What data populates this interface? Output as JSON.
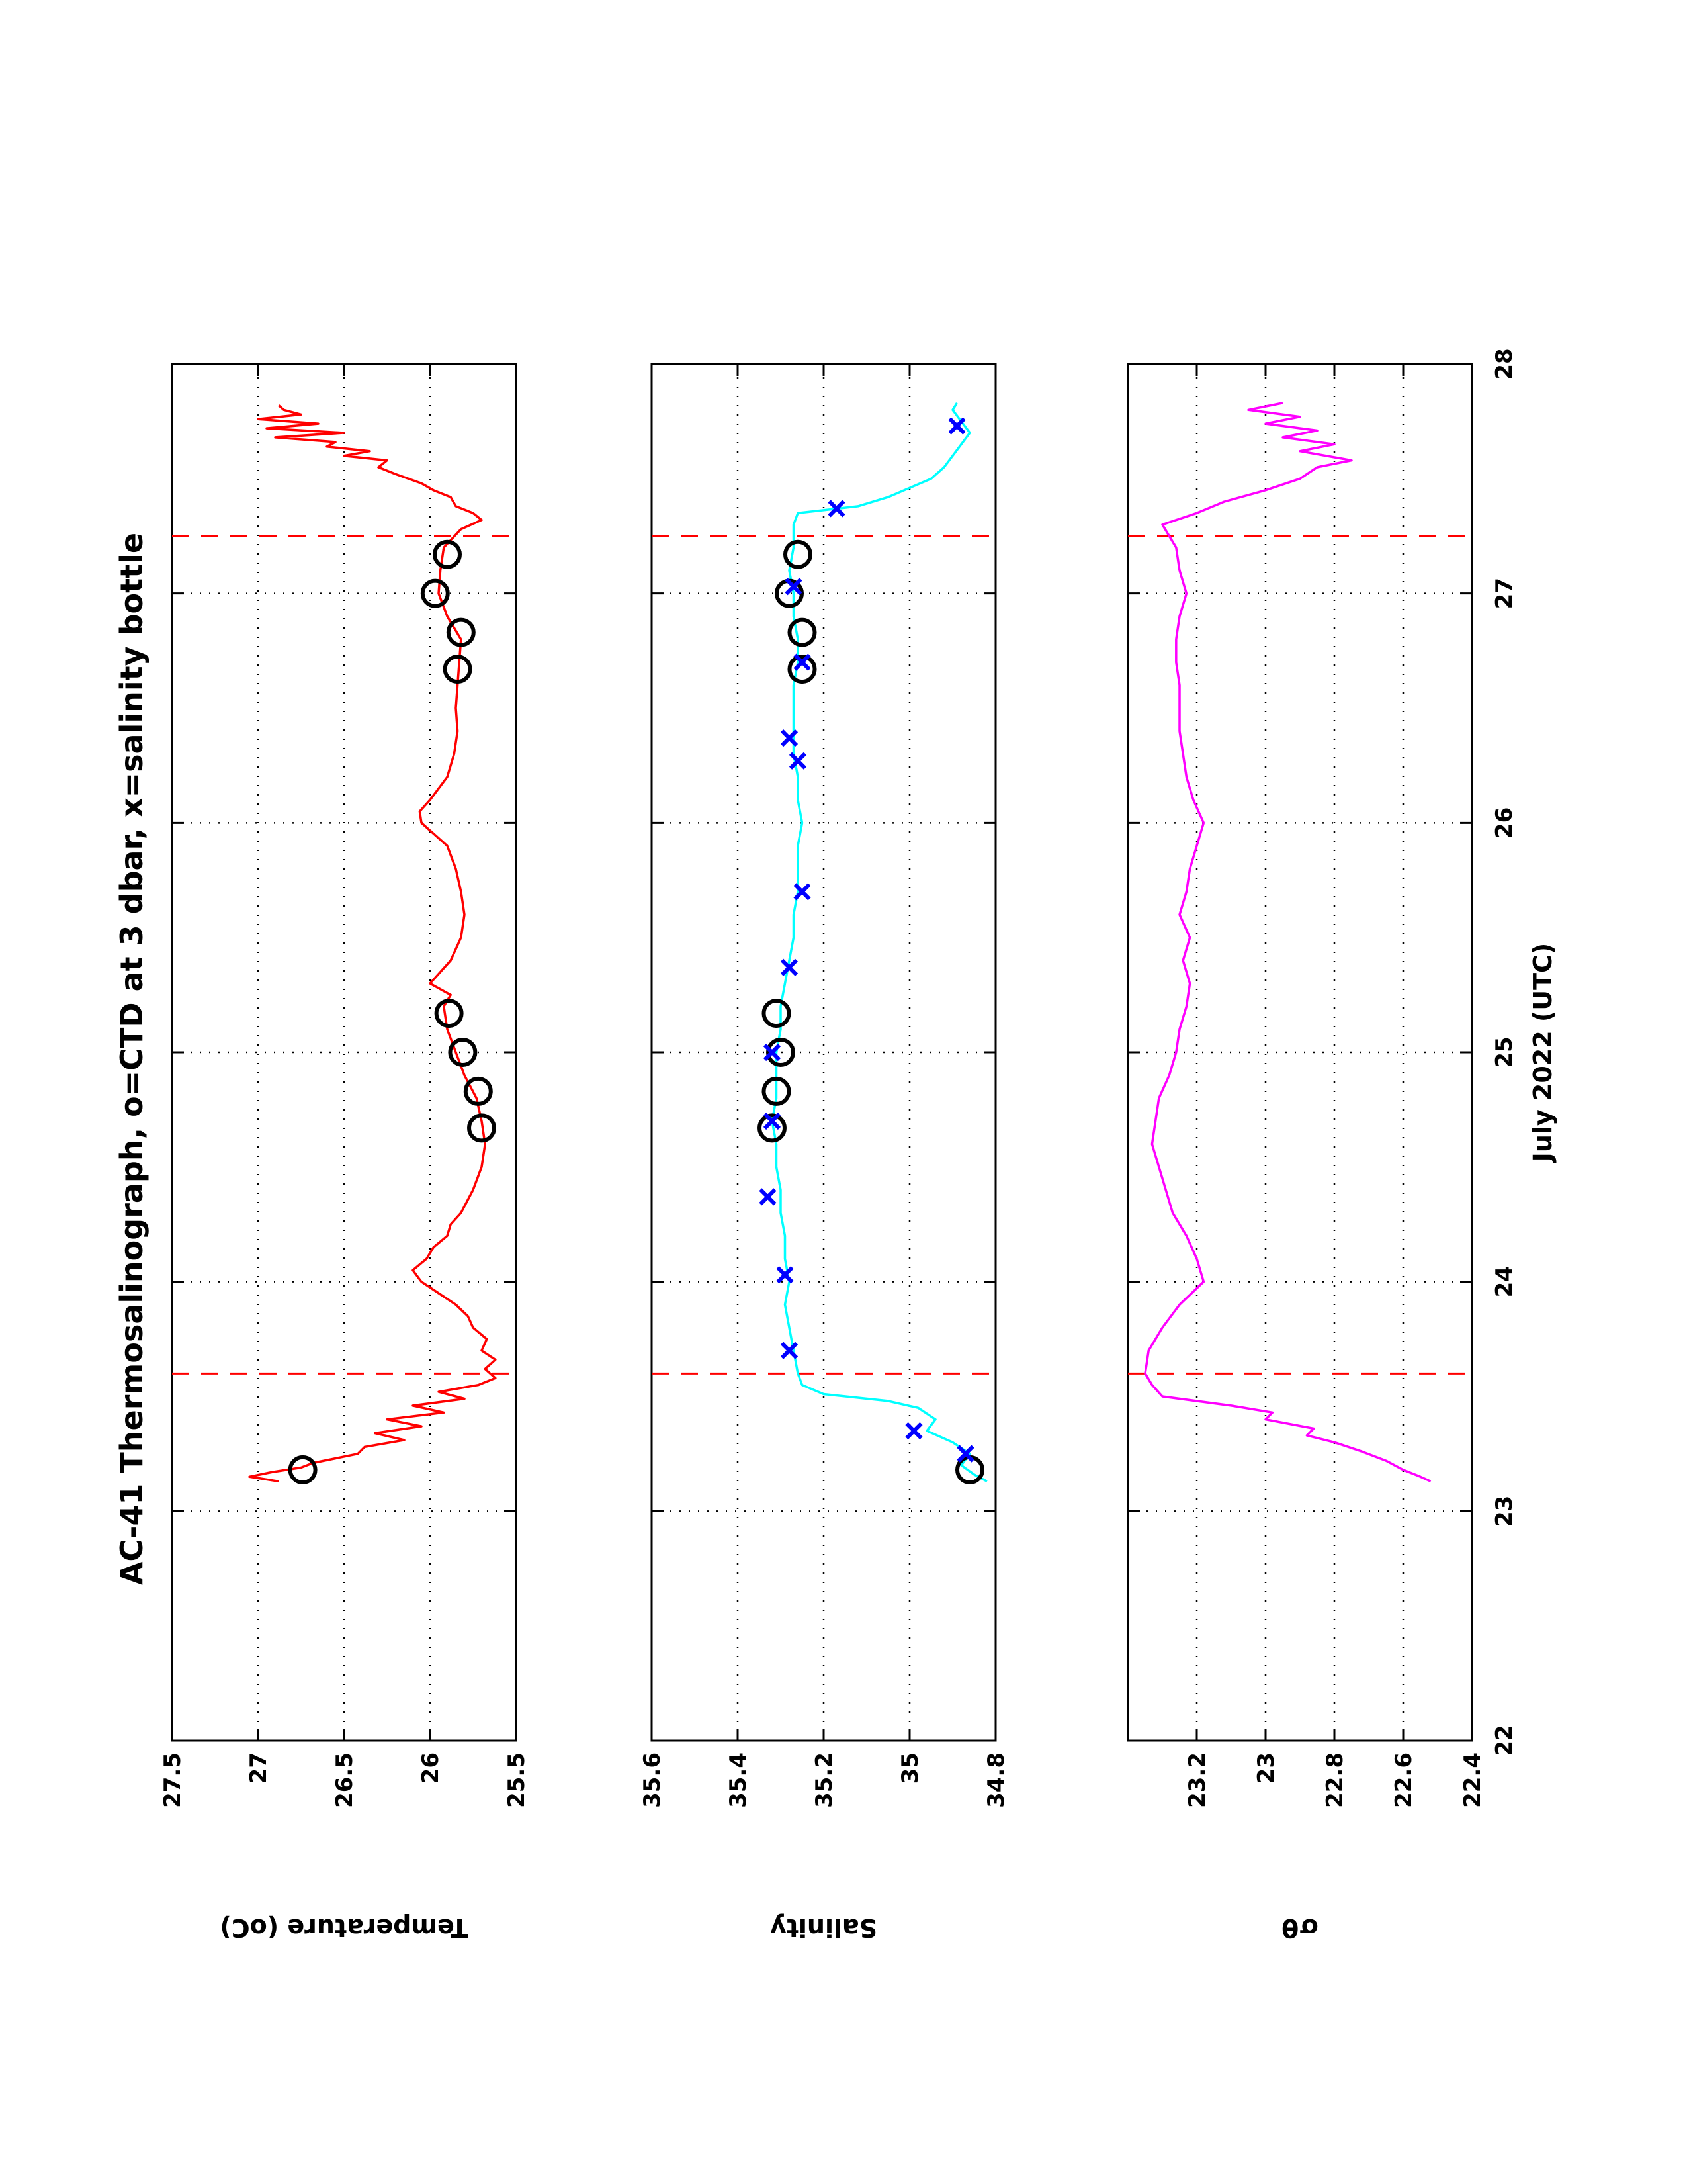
{
  "title": "AC-41 Thermosalinograph, o=CTD at 3 dbar, x=salinity bottle",
  "colors": {
    "temperature": "#ff0000",
    "salinity": "#00ffff",
    "sigma": "#ff00ff",
    "ctd_marker": "#000000",
    "bottle_marker": "#0000ff",
    "vline": "#ff0000"
  },
  "chart_data": [
    {
      "type": "line",
      "panel": "temperature",
      "xlabel": "",
      "ylabel": "Temperature (oC)",
      "xlim": [
        22,
        28
      ],
      "ylim": [
        25.5,
        27.5
      ],
      "x_ticks": [
        "22",
        "23",
        "24",
        "25",
        "26",
        "27",
        "28"
      ],
      "y_ticks": [
        "27.5",
        "27",
        "26.5",
        "26",
        "25.5"
      ],
      "grid": true,
      "vertical_dashed_lines": [
        23.6,
        27.25
      ],
      "series": [
        {
          "x": [
            23.13,
            23.15,
            23.17,
            23.19,
            23.21,
            23.23,
            23.25,
            23.28,
            23.31,
            23.34,
            23.37,
            23.4,
            23.43,
            23.46,
            23.49,
            23.52,
            23.55,
            23.58,
            23.62,
            23.66,
            23.7,
            23.75,
            23.8,
            23.85,
            23.9,
            23.95,
            24.0,
            24.05,
            24.1,
            24.15,
            24.2,
            24.25,
            24.3,
            24.4,
            24.5,
            24.6,
            24.7,
            24.8,
            24.9,
            25.0,
            25.1,
            25.2,
            25.25,
            25.3,
            25.4,
            25.5,
            25.6,
            25.7,
            25.8,
            25.9,
            26.0,
            26.05,
            26.1,
            26.2,
            26.3,
            26.4,
            26.5,
            26.6,
            26.7,
            26.8,
            26.9,
            27.0,
            27.1,
            27.2,
            27.28,
            27.32,
            27.35,
            27.38,
            27.42,
            27.45,
            27.48,
            27.52,
            27.55,
            27.58,
            27.6,
            27.62,
            27.64,
            27.66,
            27.68,
            27.7,
            27.72,
            27.74,
            27.76,
            27.78,
            27.8,
            27.82
          ],
          "values": [
            26.88,
            27.05,
            26.92,
            26.75,
            26.68,
            26.55,
            26.42,
            26.38,
            26.15,
            26.32,
            26.05,
            26.25,
            25.92,
            26.1,
            25.8,
            25.95,
            25.72,
            25.62,
            25.68,
            25.62,
            25.7,
            25.67,
            25.75,
            25.78,
            25.85,
            25.95,
            26.05,
            26.1,
            26.02,
            25.98,
            25.9,
            25.88,
            25.82,
            25.75,
            25.7,
            25.68,
            25.7,
            25.73,
            25.8,
            25.85,
            25.9,
            25.92,
            25.88,
            26.0,
            25.88,
            25.82,
            25.8,
            25.82,
            25.85,
            25.9,
            26.05,
            26.06,
            26.0,
            25.9,
            25.86,
            25.84,
            25.85,
            25.84,
            25.83,
            25.82,
            25.9,
            25.95,
            25.94,
            25.92,
            25.82,
            25.7,
            25.75,
            25.85,
            25.88,
            25.98,
            26.05,
            26.2,
            26.3,
            26.25,
            26.5,
            26.35,
            26.6,
            26.55,
            26.9,
            26.5,
            26.95,
            26.65,
            27.0,
            26.75,
            26.85,
            26.88
          ]
        }
      ],
      "ctd_points": {
        "x": [
          23.18,
          24.67,
          24.83,
          25.0,
          25.17,
          26.67,
          26.83,
          27.0,
          27.17
        ],
        "values": [
          26.74,
          25.7,
          25.72,
          25.81,
          25.89,
          25.84,
          25.82,
          25.97,
          25.9
        ]
      }
    },
    {
      "type": "line",
      "panel": "salinity",
      "xlabel": "",
      "ylabel": "Salinity",
      "xlim": [
        22,
        28
      ],
      "ylim": [
        34.8,
        35.6
      ],
      "x_ticks": [
        "22",
        "23",
        "24",
        "25",
        "26",
        "27",
        "28"
      ],
      "y_ticks": [
        "35.6",
        "35.4",
        "35.2",
        "35",
        "34.8"
      ],
      "grid": true,
      "vertical_dashed_lines": [
        23.6,
        27.25
      ],
      "series": [
        {
          "x": [
            23.13,
            23.16,
            23.2,
            23.25,
            23.3,
            23.35,
            23.4,
            23.45,
            23.48,
            23.51,
            23.55,
            23.6,
            23.7,
            23.8,
            23.9,
            24.0,
            24.1,
            24.2,
            24.3,
            24.4,
            24.5,
            24.6,
            24.7,
            24.8,
            24.9,
            25.0,
            25.1,
            25.2,
            25.3,
            25.4,
            25.5,
            25.6,
            25.7,
            25.8,
            25.9,
            26.0,
            26.1,
            26.2,
            26.3,
            26.4,
            26.5,
            26.6,
            26.7,
            26.8,
            26.9,
            27.0,
            27.1,
            27.2,
            27.3,
            27.35,
            27.38,
            27.42,
            27.46,
            27.5,
            27.55,
            27.6,
            27.65,
            27.7,
            27.75,
            27.8,
            27.83
          ],
          "values": [
            34.82,
            34.85,
            34.88,
            34.86,
            34.9,
            34.96,
            34.94,
            34.98,
            35.05,
            35.2,
            35.25,
            35.26,
            35.27,
            35.28,
            35.29,
            35.28,
            35.29,
            35.29,
            35.3,
            35.3,
            35.31,
            35.31,
            35.32,
            35.31,
            35.31,
            35.31,
            35.3,
            35.3,
            35.29,
            35.28,
            35.27,
            35.27,
            35.26,
            35.26,
            35.26,
            35.25,
            35.26,
            35.26,
            35.27,
            35.27,
            35.27,
            35.27,
            35.26,
            35.26,
            35.27,
            35.27,
            35.28,
            35.27,
            35.27,
            35.26,
            35.12,
            35.05,
            35.0,
            34.95,
            34.92,
            34.9,
            34.88,
            34.86,
            34.88,
            34.9,
            34.89
          ]
        }
      ],
      "ctd_points": {
        "x": [
          23.18,
          24.67,
          24.83,
          25.0,
          25.17,
          26.67,
          26.83,
          27.0,
          27.17
        ],
        "values": [
          34.86,
          35.32,
          35.31,
          35.3,
          35.31,
          35.25,
          35.25,
          35.28,
          35.26
        ]
      },
      "bottle_points": {
        "x": [
          23.25,
          23.35,
          23.7,
          24.03,
          24.37,
          24.7,
          25.0,
          25.37,
          25.7,
          26.27,
          26.37,
          26.7,
          27.03,
          27.37,
          27.73
        ],
        "values": [
          34.87,
          34.99,
          35.28,
          35.29,
          35.33,
          35.32,
          35.32,
          35.28,
          35.25,
          35.26,
          35.28,
          35.25,
          35.27,
          35.17,
          34.89
        ]
      }
    },
    {
      "type": "line",
      "panel": "sigma-theta",
      "xlabel": "July 2022 (UTC)",
      "ylabel": "σθ",
      "xlim": [
        22,
        28
      ],
      "ylim": [
        22.4,
        23.4
      ],
      "x_ticks": [
        "22",
        "23",
        "24",
        "25",
        "26",
        "27",
        "28"
      ],
      "y_ticks": [
        "23.2",
        "23",
        "22.8",
        "22.6",
        "22.4"
      ],
      "grid": true,
      "vertical_dashed_lines": [
        23.6,
        27.25
      ],
      "series": [
        {
          "x": [
            23.13,
            23.15,
            23.18,
            23.22,
            23.26,
            23.3,
            23.33,
            23.36,
            23.4,
            23.43,
            23.46,
            23.5,
            23.55,
            23.6,
            23.7,
            23.8,
            23.9,
            24.0,
            24.1,
            24.2,
            24.3,
            24.4,
            24.5,
            24.6,
            24.7,
            24.8,
            24.9,
            25.0,
            25.1,
            25.2,
            25.3,
            25.4,
            25.5,
            25.6,
            25.7,
            25.8,
            25.9,
            26.0,
            26.1,
            26.2,
            26.3,
            26.4,
            26.5,
            26.6,
            26.7,
            26.8,
            26.9,
            27.0,
            27.1,
            27.2,
            27.3,
            27.35,
            27.4,
            27.45,
            27.5,
            27.55,
            27.58,
            27.62,
            27.65,
            27.68,
            27.71,
            27.74,
            27.77,
            27.8,
            27.83
          ],
          "values": [
            22.52,
            22.55,
            22.6,
            22.65,
            22.72,
            22.8,
            22.88,
            22.86,
            23.0,
            22.98,
            23.1,
            23.3,
            23.33,
            23.35,
            23.34,
            23.3,
            23.25,
            23.18,
            23.2,
            23.23,
            23.27,
            23.29,
            23.31,
            23.33,
            23.32,
            23.31,
            23.28,
            23.26,
            23.25,
            23.23,
            23.22,
            23.24,
            23.22,
            23.25,
            23.23,
            23.22,
            23.2,
            23.18,
            23.21,
            23.23,
            23.24,
            23.25,
            23.25,
            23.25,
            23.26,
            23.26,
            23.25,
            23.23,
            23.25,
            23.26,
            23.3,
            23.2,
            23.12,
            23.0,
            22.9,
            22.85,
            22.75,
            22.9,
            22.8,
            22.95,
            22.85,
            23.0,
            22.9,
            23.05,
            22.95
          ]
        }
      ]
    }
  ]
}
